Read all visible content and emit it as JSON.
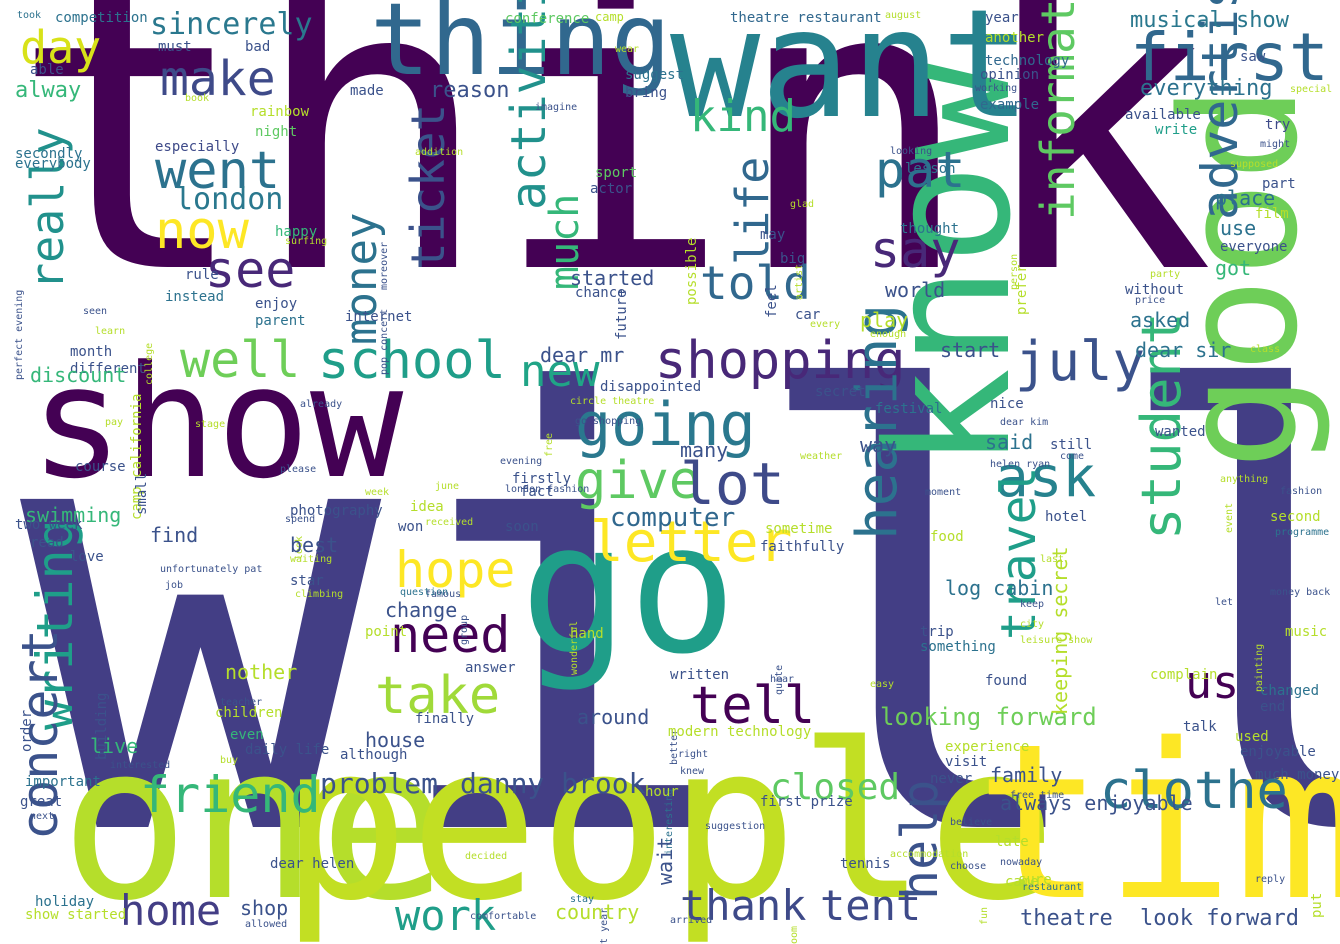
{
  "palette": {
    "purple": "#440154",
    "indigo": "#433e85",
    "blue": "#31688e",
    "teal": "#26828e",
    "green": "#1f9e89",
    "lime": "#35b779",
    "yellowgreen": "#b5de2b",
    "yellow": "#fde725"
  },
  "words": [
    {
      "text": "think",
      "color": "#440154"
    },
    {
      "text": "will",
      "color": "#433e85"
    },
    {
      "text": "show",
      "color": "#440154"
    },
    {
      "text": "go",
      "color": "#1f9e89"
    },
    {
      "text": "know",
      "color": "#35b779"
    },
    {
      "text": "good",
      "color": "#6ece58"
    },
    {
      "text": "one",
      "color": "#b5de2b"
    },
    {
      "text": "people",
      "color": "#c2df23"
    },
    {
      "text": "time",
      "color": "#fde725"
    },
    {
      "text": "want",
      "color": "#26828e"
    },
    {
      "text": "thing",
      "color": "#31688e"
    },
    {
      "text": "first",
      "color": "#31688e"
    },
    {
      "text": "make",
      "color": "#3e4a89"
    },
    {
      "text": "day",
      "color": "#d8e219"
    },
    {
      "text": "sincerely",
      "color": "#2a788e"
    },
    {
      "text": "went",
      "color": "#2c728e"
    },
    {
      "text": "now",
      "color": "#fde725"
    },
    {
      "text": "see",
      "color": "#482878"
    },
    {
      "text": "london",
      "color": "#2a788e"
    },
    {
      "text": "really",
      "color": "#21918c"
    },
    {
      "text": "money",
      "color": "#2c728e"
    },
    {
      "text": "ticket",
      "color": "#3b528b"
    },
    {
      "text": "activitie",
      "color": "#21918c"
    },
    {
      "text": "much",
      "color": "#35b779"
    },
    {
      "text": "life",
      "color": "#31688e"
    },
    {
      "text": "kind",
      "color": "#35b779"
    },
    {
      "text": "pat",
      "color": "#2c728e"
    },
    {
      "text": "say",
      "color": "#482878"
    },
    {
      "text": "told",
      "color": "#31688e"
    },
    {
      "text": "information",
      "color": "#5ec962"
    },
    {
      "text": "advertisement",
      "color": "#31688e"
    },
    {
      "text": "well",
      "color": "#6ece58"
    },
    {
      "text": "school",
      "color": "#1f9e89"
    },
    {
      "text": "shopping",
      "color": "#482878"
    },
    {
      "text": "july",
      "color": "#3b528b"
    },
    {
      "text": "new",
      "color": "#20a486"
    },
    {
      "text": "going",
      "color": "#2a788e"
    },
    {
      "text": "ask",
      "color": "#26828e"
    },
    {
      "text": "give",
      "color": "#5ec962"
    },
    {
      "text": "lot",
      "color": "#3e4a89"
    },
    {
      "text": "student",
      "color": "#35b779"
    },
    {
      "text": "hearing",
      "color": "#2c728e"
    },
    {
      "text": "travel",
      "color": "#1f9e89"
    },
    {
      "text": "letter",
      "color": "#fde725"
    },
    {
      "text": "hope",
      "color": "#fde725"
    },
    {
      "text": "need",
      "color": "#440154"
    },
    {
      "text": "take",
      "color": "#a0da39"
    },
    {
      "text": "tell",
      "color": "#440154"
    },
    {
      "text": "us",
      "color": "#440154"
    },
    {
      "text": "writing",
      "color": "#1f9e89"
    },
    {
      "text": "concert",
      "color": "#3b528b"
    },
    {
      "text": "friend",
      "color": "#35b779"
    },
    {
      "text": "clothe",
      "color": "#2c728e"
    },
    {
      "text": "problem",
      "color": "#3b528b"
    },
    {
      "text": "danny brook",
      "color": "#3b528b"
    },
    {
      "text": "home",
      "color": "#433e85"
    },
    {
      "text": "work",
      "color": "#1f9e89"
    },
    {
      "text": "thank",
      "color": "#3e4a89"
    },
    {
      "text": "tent",
      "color": "#3e4a89"
    },
    {
      "text": "help",
      "color": "#3b528b"
    },
    {
      "text": "closed",
      "color": "#5ec962"
    },
    {
      "text": "computer",
      "color": "#31688e"
    },
    {
      "text": "looking forward",
      "color": "#6ece58"
    },
    {
      "text": "theatre",
      "color": "#3b528b"
    },
    {
      "text": "look forward",
      "color": "#3b528b"
    },
    {
      "text": "musical show",
      "color": "#2a788e"
    },
    {
      "text": "everything",
      "color": "#2c728e"
    },
    {
      "text": "reason",
      "color": "#3b528b"
    },
    {
      "text": "alway",
      "color": "#35b779"
    },
    {
      "text": "competition",
      "color": "#2c728e"
    },
    {
      "text": "took",
      "color": "#2c728e"
    },
    {
      "text": "conference",
      "color": "#5ec962"
    },
    {
      "text": "camp",
      "color": "#b5de2b"
    },
    {
      "text": "theatre restaurant",
      "color": "#31688e"
    },
    {
      "text": "august",
      "color": "#b5de2b"
    },
    {
      "text": "year",
      "color": "#3b528b"
    },
    {
      "text": "another",
      "color": "#b5de2b"
    },
    {
      "text": "technology",
      "color": "#31688e"
    },
    {
      "text": "opinion",
      "color": "#3b528b"
    },
    {
      "text": "example",
      "color": "#31688e"
    },
    {
      "text": "must",
      "color": "#3b528b"
    },
    {
      "text": "bad",
      "color": "#3b528b"
    },
    {
      "text": "able",
      "color": "#3b528b"
    },
    {
      "text": "suggest",
      "color": "#2c728e"
    },
    {
      "text": "bring",
      "color": "#3b528b"
    },
    {
      "text": "made",
      "color": "#3b528b"
    },
    {
      "text": "rainbow",
      "color": "#b5de2b"
    },
    {
      "text": "night",
      "color": "#5ec962"
    },
    {
      "text": "especially",
      "color": "#3e4a89"
    },
    {
      "text": "secondly",
      "color": "#2c728e"
    },
    {
      "text": "everybody",
      "color": "#2c728e"
    },
    {
      "text": "book",
      "color": "#b5de2b"
    },
    {
      "text": "imagine",
      "color": "#3b528b"
    },
    {
      "text": "available",
      "color": "#3b528b"
    },
    {
      "text": "write",
      "color": "#1f9e89"
    },
    {
      "text": "try",
      "color": "#3e4a89"
    },
    {
      "text": "might",
      "color": "#3b528b"
    },
    {
      "text": "saw",
      "color": "#3b528b"
    },
    {
      "text": "special",
      "color": "#b5de2b"
    },
    {
      "text": "wear",
      "color": "#b5de2b"
    },
    {
      "text": "working",
      "color": "#3b528b"
    },
    {
      "text": "happy",
      "color": "#35b779"
    },
    {
      "text": "addition",
      "color": "#b5de2b"
    },
    {
      "text": "sport",
      "color": "#5ec962"
    },
    {
      "text": "actor",
      "color": "#3b528b"
    },
    {
      "text": "lesson",
      "color": "#2c728e"
    },
    {
      "text": "looking",
      "color": "#3b528b"
    },
    {
      "text": "person",
      "color": "#b5de2b"
    },
    {
      "text": "supposed",
      "color": "#b5de2b"
    },
    {
      "text": "part",
      "color": "#3b528b"
    },
    {
      "text": "film",
      "color": "#b5de2b"
    },
    {
      "text": "possible",
      "color": "#b5de2b"
    },
    {
      "text": "artist",
      "color": "#b5de2b"
    },
    {
      "text": "feel",
      "color": "#3b528b"
    },
    {
      "text": "glad",
      "color": "#b5de2b"
    },
    {
      "text": "moreover",
      "color": "#3b528b"
    },
    {
      "text": "future",
      "color": "#3b528b"
    },
    {
      "text": "thought",
      "color": "#2c728e"
    },
    {
      "text": "prefer",
      "color": "#b5de2b"
    },
    {
      "text": "place",
      "color": "#2c728e"
    },
    {
      "text": "use",
      "color": "#2c728e"
    },
    {
      "text": "everyone",
      "color": "#3b528b"
    },
    {
      "text": "got",
      "color": "#35b779"
    },
    {
      "text": "may",
      "color": "#3b528b"
    },
    {
      "text": "big",
      "color": "#3b528b"
    },
    {
      "text": "surfing",
      "color": "#b5de2b"
    },
    {
      "text": "college",
      "color": "#b5de2b"
    },
    {
      "text": "perfect evening",
      "color": "#3b528b"
    },
    {
      "text": "rule",
      "color": "#3b528b"
    },
    {
      "text": "instead",
      "color": "#2c728e"
    },
    {
      "text": "pop concert",
      "color": "#3b528b"
    },
    {
      "text": "enjoy",
      "color": "#3b528b"
    },
    {
      "text": "parent",
      "color": "#2c728e"
    },
    {
      "text": "started",
      "color": "#3b528b"
    },
    {
      "text": "chance",
      "color": "#3b528b"
    },
    {
      "text": "price",
      "color": "#3b528b"
    },
    {
      "text": "party",
      "color": "#b5de2b"
    },
    {
      "text": "without",
      "color": "#3b528b"
    },
    {
      "text": "world",
      "color": "#3b528b"
    },
    {
      "text": "seen",
      "color": "#3b528b"
    },
    {
      "text": "learn",
      "color": "#b5de2b"
    },
    {
      "text": "internet",
      "color": "#3b528b"
    },
    {
      "text": "month",
      "color": "#3b528b"
    },
    {
      "text": "different",
      "color": "#3b528b"
    },
    {
      "text": "discount",
      "color": "#35b779"
    },
    {
      "text": "dear mr",
      "color": "#3b528b"
    },
    {
      "text": "free",
      "color": "#b5de2b"
    },
    {
      "text": "car",
      "color": "#3b528b"
    },
    {
      "text": "every",
      "color": "#b5de2b"
    },
    {
      "text": "enough",
      "color": "#b5de2b"
    },
    {
      "text": "play",
      "color": "#b5de2b"
    },
    {
      "text": "start",
      "color": "#3b528b"
    },
    {
      "text": "asked",
      "color": "#2c728e"
    },
    {
      "text": "dear sir",
      "color": "#2c728e"
    },
    {
      "text": "class",
      "color": "#b5de2b"
    },
    {
      "text": "disappointed",
      "color": "#3b528b"
    },
    {
      "text": "secret",
      "color": "#3b528b"
    },
    {
      "text": "circle theatre",
      "color": "#b5de2b"
    },
    {
      "text": "go shopping",
      "color": "#3b528b"
    },
    {
      "text": "pay",
      "color": "#b5de2b"
    },
    {
      "text": "camp california",
      "color": "#b5de2b"
    },
    {
      "text": "stage",
      "color": "#b5de2b"
    },
    {
      "text": "already",
      "color": "#3b528b"
    },
    {
      "text": "festival",
      "color": "#2c728e"
    },
    {
      "text": "nice",
      "color": "#3b528b"
    },
    {
      "text": "dear kim",
      "color": "#3b528b"
    },
    {
      "text": "event",
      "color": "#b5de2b"
    },
    {
      "text": "wanted",
      "color": "#3b528b"
    },
    {
      "text": "way",
      "color": "#3b528b"
    },
    {
      "text": "many",
      "color": "#3b528b"
    },
    {
      "text": "said",
      "color": "#2c728e"
    },
    {
      "text": "still",
      "color": "#3b528b"
    },
    {
      "text": "helen ryan",
      "color": "#3b528b"
    },
    {
      "text": "weather",
      "color": "#b5de2b"
    },
    {
      "text": "come",
      "color": "#3b528b"
    },
    {
      "text": "look",
      "color": "#b5de2b"
    },
    {
      "text": "week",
      "color": "#b5de2b"
    },
    {
      "text": "june",
      "color": "#b5de2b"
    },
    {
      "text": "london fashion",
      "color": "#3b528b"
    },
    {
      "text": "evening",
      "color": "#3b528b"
    },
    {
      "text": "firstly",
      "color": "#3b528b"
    },
    {
      "text": "fact",
      "color": "#3b528b"
    },
    {
      "text": "course",
      "color": "#3b528b"
    },
    {
      "text": "small",
      "color": "#3b528b"
    },
    {
      "text": "please",
      "color": "#3b528b"
    },
    {
      "text": "moment",
      "color": "#3b528b"
    },
    {
      "text": "anything",
      "color": "#b5de2b"
    },
    {
      "text": "fashion",
      "color": "#3b528b"
    },
    {
      "text": "photography",
      "color": "#3b528b"
    },
    {
      "text": "spend",
      "color": "#3b528b"
    },
    {
      "text": "idea",
      "color": "#b5de2b"
    },
    {
      "text": "group",
      "color": "#3b528b"
    },
    {
      "text": "won",
      "color": "#3b528b"
    },
    {
      "text": "soon",
      "color": "#3b528b"
    },
    {
      "text": "swimming",
      "color": "#35b779"
    },
    {
      "text": "two week",
      "color": "#3b528b"
    },
    {
      "text": "read",
      "color": "#3b528b"
    },
    {
      "text": "love",
      "color": "#3b528b"
    },
    {
      "text": "find",
      "color": "#3b528b"
    },
    {
      "text": "best",
      "color": "#3b528b"
    },
    {
      "text": "sometime",
      "color": "#b5de2b"
    },
    {
      "text": "faithfully",
      "color": "#3b528b"
    },
    {
      "text": "hotel",
      "color": "#3b528b"
    },
    {
      "text": "second",
      "color": "#b5de2b"
    },
    {
      "text": "programme",
      "color": "#2c728e"
    },
    {
      "text": "food",
      "color": "#b5de2b"
    },
    {
      "text": "waiting",
      "color": "#b5de2b"
    },
    {
      "text": "unfortunately pat",
      "color": "#3b528b"
    },
    {
      "text": "received",
      "color": "#b5de2b"
    },
    {
      "text": "wonderful",
      "color": "#b5de2b"
    },
    {
      "text": "last",
      "color": "#b5de2b"
    },
    {
      "text": "painting",
      "color": "#b5de2b"
    },
    {
      "text": "money back",
      "color": "#3b528b"
    },
    {
      "text": "order",
      "color": "#3b528b"
    },
    {
      "text": "star",
      "color": "#3b528b"
    },
    {
      "text": "climbing",
      "color": "#b5de2b"
    },
    {
      "text": "famous",
      "color": "#3b528b"
    },
    {
      "text": "question",
      "color": "#2c728e"
    },
    {
      "text": "change",
      "color": "#3b528b"
    },
    {
      "text": "log cabin",
      "color": "#2c728e"
    },
    {
      "text": "keeping secret",
      "color": "#b5de2b"
    },
    {
      "text": "quite",
      "color": "#3b528b"
    },
    {
      "text": "keep",
      "color": "#3b528b"
    },
    {
      "text": "city",
      "color": "#b5de2b"
    },
    {
      "text": "leisure show",
      "color": "#b5de2b"
    },
    {
      "text": "let",
      "color": "#3b528b"
    },
    {
      "text": "music",
      "color": "#b5de2b"
    },
    {
      "text": "job",
      "color": "#3b528b"
    },
    {
      "text": "hand",
      "color": "#b5de2b"
    },
    {
      "text": "better",
      "color": "#3b528b"
    },
    {
      "text": "trip",
      "color": "#3b528b"
    },
    {
      "text": "something",
      "color": "#2c728e"
    },
    {
      "text": "building",
      "color": "#3b528b"
    },
    {
      "text": "point",
      "color": "#b5de2b"
    },
    {
      "text": "answer",
      "color": "#3b528b"
    },
    {
      "text": "written",
      "color": "#3b528b"
    },
    {
      "text": "hear",
      "color": "#3b528b"
    },
    {
      "text": "found",
      "color": "#3b528b"
    },
    {
      "text": "complain",
      "color": "#b5de2b"
    },
    {
      "text": "changed",
      "color": "#2c728e"
    },
    {
      "text": "end",
      "color": "#3b528b"
    },
    {
      "text": "nother",
      "color": "#b5de2b"
    },
    {
      "text": "teacher",
      "color": "#3b528b"
    },
    {
      "text": "children",
      "color": "#b5de2b"
    },
    {
      "text": "easy",
      "color": "#b5de2b"
    },
    {
      "text": "interesting",
      "color": "#2c728e"
    },
    {
      "text": "finally",
      "color": "#3b528b"
    },
    {
      "text": "around",
      "color": "#3b528b"
    },
    {
      "text": "modern technology",
      "color": "#b5de2b"
    },
    {
      "text": "talk",
      "color": "#3b528b"
    },
    {
      "text": "used",
      "color": "#b5de2b"
    },
    {
      "text": "even",
      "color": "#35b779"
    },
    {
      "text": "live",
      "color": "#35b779"
    },
    {
      "text": "house",
      "color": "#3b528b"
    },
    {
      "text": "daily life",
      "color": "#3b528b"
    },
    {
      "text": "although",
      "color": "#3b528b"
    },
    {
      "text": "experience",
      "color": "#b5de2b"
    },
    {
      "text": "enjoyable",
      "color": "#3b528b"
    },
    {
      "text": "interested",
      "color": "#3b528b"
    },
    {
      "text": "buy",
      "color": "#b5de2b"
    },
    {
      "text": "wait",
      "color": "#3b528b"
    },
    {
      "text": "right",
      "color": "#3b528b"
    },
    {
      "text": "knew",
      "color": "#3b528b"
    },
    {
      "text": "visit",
      "color": "#3b528b"
    },
    {
      "text": "family",
      "color": "#3b528b"
    },
    {
      "text": "never",
      "color": "#3b528b"
    },
    {
      "text": "much money",
      "color": "#3b528b"
    },
    {
      "text": "important",
      "color": "#2c728e"
    },
    {
      "text": "hour",
      "color": "#b5de2b"
    },
    {
      "text": "fun",
      "color": "#b5de2b"
    },
    {
      "text": "free time",
      "color": "#3b528b"
    },
    {
      "text": "first prize",
      "color": "#3b528b"
    },
    {
      "text": "great",
      "color": "#3b528b"
    },
    {
      "text": "always enjoyable",
      "color": "#3b528b"
    },
    {
      "text": "put",
      "color": "#b5de2b"
    },
    {
      "text": "next",
      "color": "#3b528b"
    },
    {
      "text": "suggestion",
      "color": "#3b528b"
    },
    {
      "text": "room",
      "color": "#b5de2b"
    },
    {
      "text": "believe",
      "color": "#3b528b"
    },
    {
      "text": "late",
      "color": "#b5de2b"
    },
    {
      "text": "choose",
      "color": "#3b528b"
    },
    {
      "text": "dear helen",
      "color": "#3b528b"
    },
    {
      "text": "decided",
      "color": "#b5de2b"
    },
    {
      "text": "next year",
      "color": "#3b528b"
    },
    {
      "text": "tennis",
      "color": "#3b528b"
    },
    {
      "text": "accommodation",
      "color": "#b5de2b"
    },
    {
      "text": "nowaday",
      "color": "#3b528b"
    },
    {
      "text": "came",
      "color": "#b5de2b"
    },
    {
      "text": "reply",
      "color": "#3b528b"
    },
    {
      "text": "holiday",
      "color": "#2c728e"
    },
    {
      "text": "shop",
      "color": "#3b528b"
    },
    {
      "text": "sure",
      "color": "#b5de2b"
    },
    {
      "text": "restaurant",
      "color": "#2c728e"
    },
    {
      "text": "show started",
      "color": "#b5de2b"
    },
    {
      "text": "allowed",
      "color": "#3b528b"
    },
    {
      "text": "comfortable",
      "color": "#3b528b"
    },
    {
      "text": "stay",
      "color": "#2c728e"
    },
    {
      "text": "country",
      "color": "#b5de2b"
    },
    {
      "text": "arrived",
      "color": "#3b528b"
    }
  ]
}
